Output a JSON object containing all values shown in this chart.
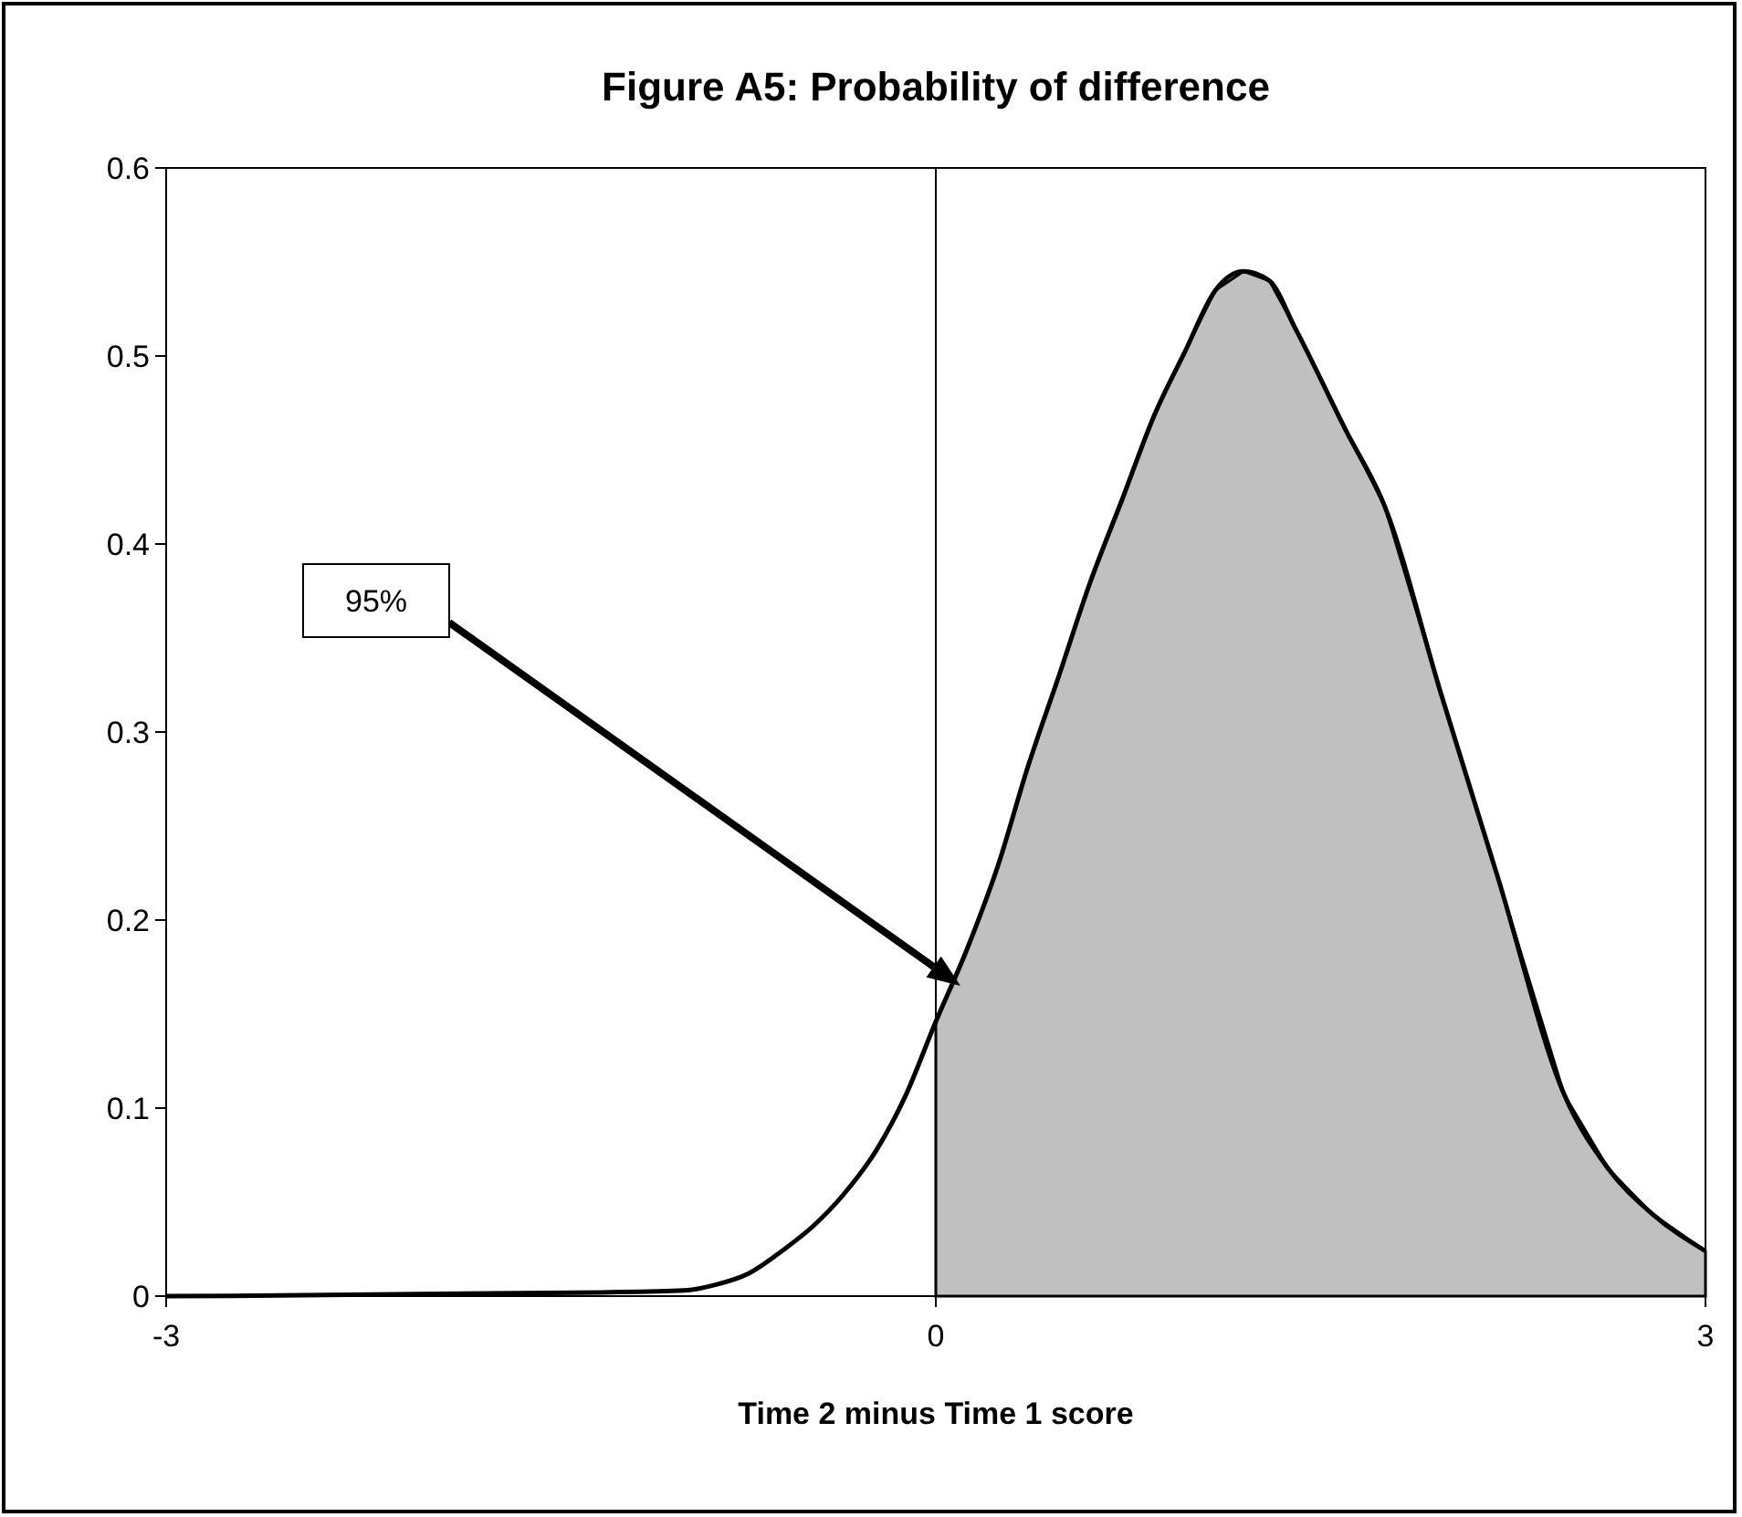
{
  "chart_data": {
    "type": "line",
    "title": "Figure A5: Probability of difference",
    "xlabel": "Time 2 minus Time 1 score",
    "xlim": [
      -3,
      3
    ],
    "xticks": [
      -3,
      0,
      3
    ],
    "ylim": [
      0,
      0.6
    ],
    "yticks": [
      0,
      0.1,
      0.2,
      0.3,
      0.4,
      0.5,
      0.6
    ],
    "grid": false,
    "marker": "none",
    "line_style": "solid",
    "series": [
      {
        "type": "area",
        "color": "#c0c0c0",
        "x": [
          0,
          0.12,
          0.24,
          0.36,
          0.48,
          0.6,
          0.73,
          0.85,
          0.97,
          1.09,
          1.2,
          1.3,
          1.4,
          1.6,
          1.75,
          1.97,
          2.19,
          2.45,
          2.62,
          2.79,
          3
        ],
        "values": [
          0.146,
          0.184,
          0.228,
          0.282,
          0.33,
          0.379,
          0.425,
          0.468,
          0.502,
          0.535,
          0.545,
          0.54,
          0.515,
          0.46,
          0.42,
          0.32,
          0.223,
          0.107,
          0.068,
          0.044,
          0.024
        ]
      },
      {
        "color": "#000000",
        "x": [
          -3,
          -1.3,
          -0.98,
          -0.86,
          -0.73,
          -0.6,
          -0.48,
          -0.36,
          -0.23,
          -0.12,
          0,
          0.12,
          0.24,
          0.36,
          0.48,
          0.6,
          0.73,
          0.85,
          0.97,
          1.09,
          1.2,
          1.3,
          1.4,
          1.6,
          1.75,
          1.97,
          2.19,
          2.45,
          2.62,
          2.79,
          3
        ],
        "values": [
          0,
          0.002,
          0.003,
          0.006,
          0.012,
          0.024,
          0.037,
          0.054,
          0.078,
          0.106,
          0.146,
          0.184,
          0.228,
          0.282,
          0.33,
          0.379,
          0.425,
          0.468,
          0.502,
          0.535,
          0.545,
          0.54,
          0.515,
          0.46,
          0.42,
          0.32,
          0.223,
          0.107,
          0.068,
          0.044,
          0.024
        ]
      }
    ],
    "ref_lines": [
      {
        "axis": "x",
        "value": 0,
        "color": "#000000"
      }
    ],
    "annotations": [
      "95%"
    ]
  }
}
